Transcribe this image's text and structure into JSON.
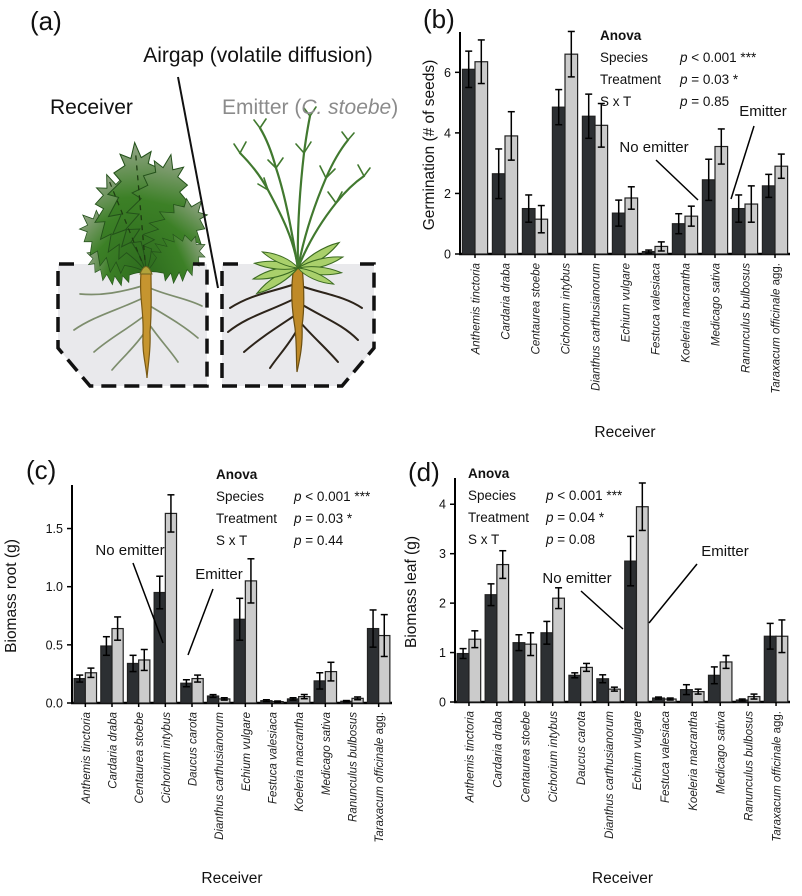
{
  "panels": {
    "a": {
      "letter": "(a)",
      "airgap_label": "Airgap (volatile diffusion)",
      "receiver_label": "Receiver",
      "emitter_label_prefix": "Emitter (",
      "emitter_label_species": "C. stoebe",
      "emitter_label_suffix": ")"
    },
    "b": {
      "letter": "(b)"
    },
    "c": {
      "letter": "(c)"
    },
    "d": {
      "letter": "(d)"
    }
  },
  "colors": {
    "bar_no_emitter": "#2c2f32",
    "bar_emitter": "#cbcbcb",
    "bar_outline": "#222222",
    "soil": "#e9e9ec",
    "emitter_text_gray": "#8b8b8b"
  },
  "chart_data": [
    {
      "name": "germination-chart",
      "panel": "b",
      "type": "bar",
      "ylabel": "Germination (# of seeds)",
      "xlabel": "Receiver",
      "ylim": [
        0,
        7.2
      ],
      "yticks": [
        "0",
        "2",
        "4",
        "6"
      ],
      "grid": false,
      "legend_position": "annotated-on-plot",
      "categories": [
        "Anthemis tinctoria",
        "Cardaria draba",
        "Centaurea stoebe",
        "Cichorium intybus",
        "Dianthus carthusianorum",
        "Echium vulgare",
        "Festuca valesiaca",
        "Koeleria macrantha",
        "Medicago sativa",
        "Ranunculus bulbosus",
        "Taraxacum officinale agg."
      ],
      "series": [
        {
          "name": "No emitter",
          "values": [
            6.1,
            2.65,
            1.5,
            4.85,
            4.55,
            1.35,
            0.08,
            1.0,
            2.45,
            1.5,
            2.25
          ],
          "errors": [
            0.6,
            0.82,
            0.45,
            0.58,
            0.73,
            0.43,
            0.05,
            0.33,
            0.68,
            0.45,
            0.38
          ]
        },
        {
          "name": "Emitter",
          "values": [
            6.35,
            3.9,
            1.15,
            6.6,
            4.25,
            1.85,
            0.25,
            1.25,
            3.55,
            1.65,
            2.9
          ],
          "errors": [
            0.72,
            0.8,
            0.45,
            0.75,
            0.72,
            0.37,
            0.15,
            0.33,
            0.58,
            0.6,
            0.4
          ]
        }
      ],
      "anova": {
        "title": "Anova",
        "rows": [
          {
            "factor": "Species",
            "p": "p < 0.001 ***"
          },
          {
            "factor": "Treatment",
            "p": "p = 0.03 *"
          },
          {
            "factor": "S x T",
            "p": "p = 0.85"
          }
        ]
      },
      "annotations": [
        {
          "text": "No emitter"
        },
        {
          "text": "Emitter"
        }
      ]
    },
    {
      "name": "biomass-root-chart",
      "panel": "c",
      "type": "bar",
      "ylabel": "Biomass root (g)",
      "xlabel": "Receiver",
      "ylim": [
        0,
        1.84
      ],
      "yticks": [
        "0.0",
        "0.5",
        "1.0",
        "1.5"
      ],
      "grid": false,
      "legend_position": "annotated-on-plot",
      "categories": [
        "Anthemis tinctoria",
        "Cardaria draba",
        "Centaurea stoebe",
        "Cichorium intybus",
        "Daucus carota",
        "Dianthus carthusianorum",
        "Echium vulgare",
        "Festuca valesiaca",
        "Koeleria macrantha",
        "Medicago sativa",
        "Ranunculus bulbosus",
        "Taraxacum officinale agg."
      ],
      "series": [
        {
          "name": "No emitter",
          "values": [
            0.21,
            0.49,
            0.34,
            0.95,
            0.17,
            0.06,
            0.72,
            0.02,
            0.035,
            0.19,
            0.015,
            0.64
          ],
          "errors": [
            0.03,
            0.08,
            0.07,
            0.14,
            0.03,
            0.012,
            0.18,
            0.008,
            0.01,
            0.07,
            0.006,
            0.16
          ]
        },
        {
          "name": "Emitter",
          "values": [
            0.26,
            0.64,
            0.37,
            1.63,
            0.21,
            0.035,
            1.05,
            0.012,
            0.055,
            0.27,
            0.04,
            0.58
          ],
          "errors": [
            0.04,
            0.1,
            0.09,
            0.16,
            0.03,
            0.01,
            0.19,
            0.005,
            0.018,
            0.08,
            0.012,
            0.18
          ]
        }
      ],
      "anova": {
        "title": "Anova",
        "rows": [
          {
            "factor": "Species",
            "p": "p < 0.001 ***"
          },
          {
            "factor": "Treatment",
            "p": "p = 0.03 *"
          },
          {
            "factor": "S x T",
            "p": "p = 0.44"
          }
        ]
      },
      "annotations": [
        {
          "text": "No emitter"
        },
        {
          "text": "Emitter"
        }
      ]
    },
    {
      "name": "biomass-leaf-chart",
      "panel": "d",
      "type": "bar",
      "ylabel": "Biomass leaf (g)",
      "xlabel": "Receiver",
      "ylim": [
        0,
        4.45
      ],
      "yticks": [
        "0",
        "1",
        "2",
        "3",
        "4"
      ],
      "grid": false,
      "legend_position": "annotated-on-plot",
      "categories": [
        "Anthemis tinctoria",
        "Cardaria draba",
        "Centaurea stoebe",
        "Cichorium intybus",
        "Daucus carota",
        "Dianthus carthusianorum",
        "Echium vulgare",
        "Festuca valesiaca",
        "Koeleria macrantha",
        "Medicago sativa",
        "Ranunculus bulbosus",
        "Taraxacum officinale agg."
      ],
      "series": [
        {
          "name": "No emitter",
          "values": [
            0.98,
            2.17,
            1.2,
            1.4,
            0.54,
            0.47,
            2.85,
            0.08,
            0.25,
            0.54,
            0.04,
            1.33
          ],
          "errors": [
            0.1,
            0.22,
            0.16,
            0.23,
            0.05,
            0.08,
            0.5,
            0.02,
            0.1,
            0.17,
            0.02,
            0.26
          ]
        },
        {
          "name": "Emitter",
          "values": [
            1.27,
            2.78,
            1.17,
            2.1,
            0.7,
            0.26,
            3.95,
            0.06,
            0.21,
            0.81,
            0.11,
            1.33
          ],
          "errors": [
            0.17,
            0.28,
            0.23,
            0.21,
            0.08,
            0.04,
            0.48,
            0.02,
            0.05,
            0.13,
            0.05,
            0.33
          ]
        }
      ],
      "anova": {
        "title": "Anova",
        "rows": [
          {
            "factor": "Species",
            "p": "p < 0.001 ***"
          },
          {
            "factor": "Treatment",
            "p": "p = 0.04 *"
          },
          {
            "factor": "S x T",
            "p": "p = 0.08"
          }
        ]
      },
      "annotations": [
        {
          "text": "No emitter"
        },
        {
          "text": "Emitter"
        }
      ]
    }
  ]
}
